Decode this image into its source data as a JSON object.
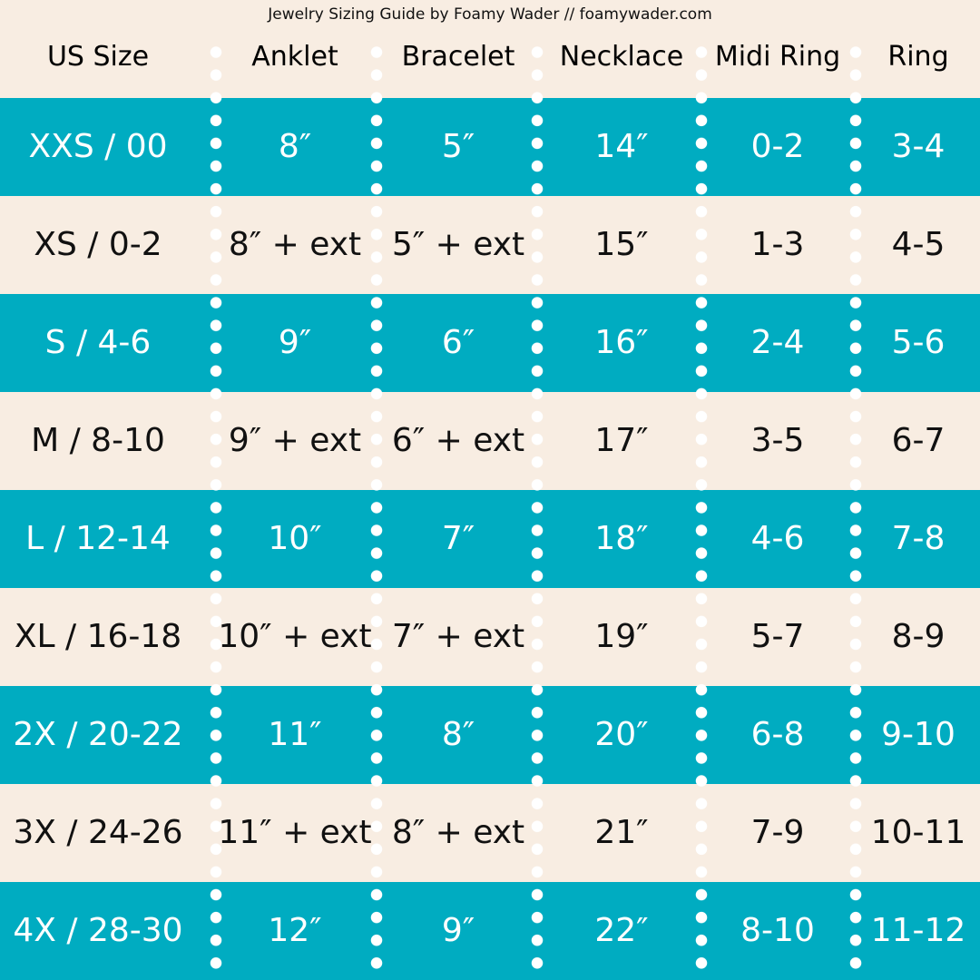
{
  "subtitle": "Jewelry Sizing Guide by Foamy Wader // foamywader.com",
  "colors": {
    "teal": "#00acc1",
    "cream": "#f8ede2",
    "dots": "#ffffff"
  },
  "columns": [
    "US Size",
    "Anklet",
    "Bracelet",
    "Necklace",
    "Midi Ring",
    "Ring"
  ],
  "rows": [
    [
      "XXS / 00",
      "8″",
      "5″",
      "14″",
      "0-2",
      "3-4"
    ],
    [
      "XS / 0-2",
      "8″ + ext",
      "5″ + ext",
      "15″",
      "1-3",
      "4-5"
    ],
    [
      "S / 4-6",
      "9″",
      "6″",
      "16″",
      "2-4",
      "5-6"
    ],
    [
      "M / 8-10",
      "9″ + ext",
      "6″ + ext",
      "17″",
      "3-5",
      "6-7"
    ],
    [
      "L / 12-14",
      "10″",
      "7″",
      "18″",
      "4-6",
      "7-8"
    ],
    [
      "XL / 16-18",
      "10″ + ext",
      "7″ + ext",
      "19″",
      "5-7",
      "8-9"
    ],
    [
      "2X / 20-22",
      "11″",
      "8″",
      "20″",
      "6-8",
      "9-10"
    ],
    [
      "3X / 24-26",
      "11″ + ext",
      "8″ + ext",
      "21″",
      "7-9",
      "10-11"
    ],
    [
      "4X / 28-30",
      "12″",
      "9″",
      "22″",
      "8-10",
      "11-12"
    ]
  ]
}
